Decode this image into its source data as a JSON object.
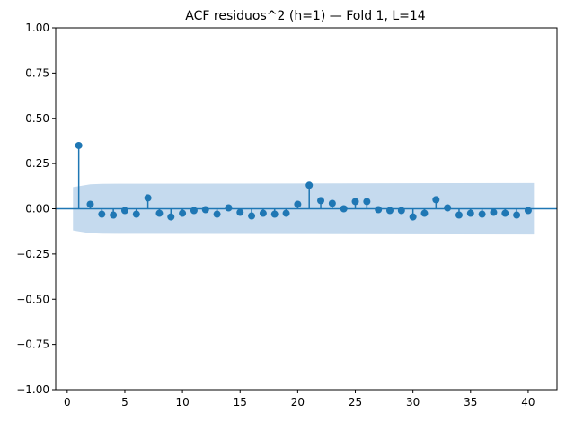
{
  "chart_data": {
    "type": "stem",
    "title": "ACF residuos^2 (h=1) — Fold 1, L=14",
    "xlabel": "",
    "ylabel": "",
    "xlim": [
      -1,
      42.5
    ],
    "ylim": [
      -1.0,
      1.0
    ],
    "xticks": [
      0,
      5,
      10,
      15,
      20,
      25,
      30,
      35,
      40
    ],
    "yticks": [
      -1.0,
      -0.75,
      -0.5,
      -0.25,
      0.0,
      0.25,
      0.5,
      0.75,
      1.0
    ],
    "xtick_labels": [
      "0",
      "5",
      "10",
      "15",
      "20",
      "25",
      "30",
      "35",
      "40"
    ],
    "ytick_labels": [
      "−1.00",
      "−0.75",
      "−0.50",
      "−0.25",
      "0.00",
      "0.25",
      "0.50",
      "0.75",
      "1.00"
    ],
    "lags": [
      1,
      2,
      3,
      4,
      5,
      6,
      7,
      8,
      9,
      10,
      11,
      12,
      13,
      14,
      15,
      16,
      17,
      18,
      19,
      20,
      21,
      22,
      23,
      24,
      25,
      26,
      27,
      28,
      29,
      30,
      31,
      32,
      33,
      34,
      35,
      36,
      37,
      38,
      39,
      40
    ],
    "values": [
      0.35,
      0.025,
      -0.03,
      -0.035,
      -0.01,
      -0.03,
      0.06,
      -0.025,
      -0.045,
      -0.025,
      -0.01,
      -0.005,
      -0.03,
      0.005,
      -0.02,
      -0.04,
      -0.025,
      -0.03,
      -0.025,
      0.025,
      0.13,
      0.045,
      0.03,
      0.0,
      0.04,
      0.04,
      -0.005,
      -0.01,
      -0.01,
      -0.045,
      -0.025,
      0.05,
      0.005,
      -0.035,
      -0.025,
      -0.03,
      -0.02,
      -0.025,
      -0.035,
      -0.01
    ],
    "confidence_band": {
      "x": [
        0.5,
        1,
        2,
        3,
        40.5
      ],
      "upper": [
        0.12,
        0.125,
        0.135,
        0.138,
        0.142
      ],
      "lower": [
        -0.12,
        -0.125,
        -0.135,
        -0.138,
        -0.142
      ]
    },
    "grid": false,
    "colors": {
      "stem": "#1f77b4",
      "band": "#c5daee",
      "axis": "#000000"
    }
  }
}
